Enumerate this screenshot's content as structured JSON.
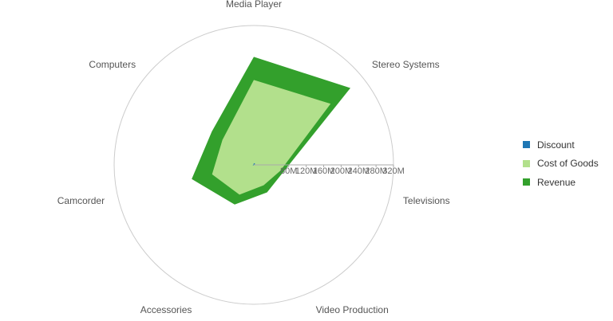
{
  "chart_data": {
    "type": "radar",
    "categories": [
      "Media Player",
      "Stereo Systems",
      "Televisions",
      "Video Production",
      "Accessories",
      "Camcorder",
      "Computers"
    ],
    "axis_ticks": [
      "80M",
      "120M",
      "160M",
      "200M",
      "240M",
      "280M",
      "320M"
    ],
    "rmax": 320,
    "unit": "M",
    "series": [
      {
        "name": "Discount",
        "color": "#1f77b4",
        "values": [
          4,
          4,
          1,
          1,
          1,
          3,
          1
        ]
      },
      {
        "name": "Cost of Goods",
        "color": "#b2e08c",
        "values": [
          195,
          225,
          62,
          52,
          76,
          98,
          92
        ]
      },
      {
        "name": "Revenue",
        "color": "#33a02c",
        "values": [
          248,
          283,
          70,
          70,
          101,
          146,
          123
        ]
      }
    ],
    "legend_position": "right"
  }
}
